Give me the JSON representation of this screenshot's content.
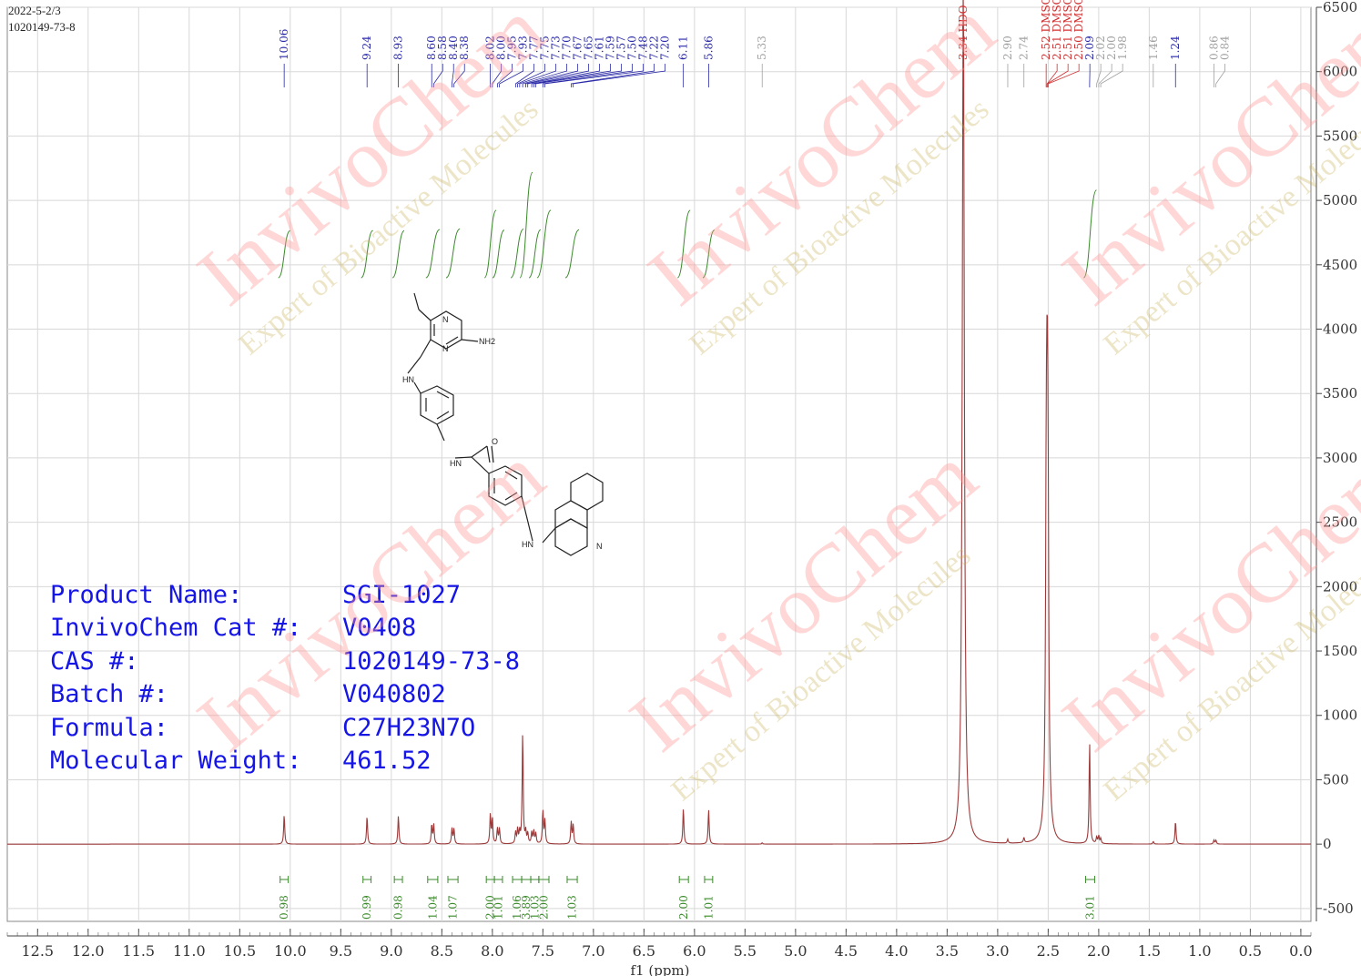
{
  "header": {
    "date": "2022-5-2/3",
    "cas_top": "1020149-73-8"
  },
  "product_info": {
    "labels": [
      "Product Name:",
      "InvivoChem Cat #:",
      "CAS #:",
      "Batch #:",
      "Formula:",
      "Molecular Weight:"
    ],
    "values": [
      "SGI-1027",
      "V0408",
      "1020149-73-8",
      "V040802",
      "C27H23N7O",
      "461.52"
    ]
  },
  "watermark": {
    "brand": "InvivoChem",
    "tagline": "Expert of Bioactive Molecules"
  },
  "structure_labels": {
    "n1": "N",
    "n2": "N",
    "nh2": "NH2",
    "hn1": "HN",
    "hn2": "HN",
    "hn3": "HN",
    "o": "O",
    "n3": "N"
  },
  "chart_data": {
    "type": "line",
    "xlabel": "f1 (ppm)",
    "xlim": [
      12.8,
      -0.1
    ],
    "ylim": [
      -600,
      6500
    ],
    "x_ticks": [
      "12.5",
      "12.0",
      "11.5",
      "11.0",
      "10.5",
      "10.0",
      "9.5",
      "9.0",
      "8.5",
      "8.0",
      "7.5",
      "7.0",
      "6.5",
      "6.0",
      "5.5",
      "5.0",
      "4.5",
      "4.0",
      "3.5",
      "3.0",
      "2.5",
      "2.0",
      "1.5",
      "1.0",
      "0.5",
      "0.0"
    ],
    "y_ticks": [
      "6500",
      "6000",
      "5500",
      "5000",
      "4500",
      "4000",
      "3500",
      "3000",
      "2500",
      "2000",
      "1500",
      "1000",
      "500",
      "0",
      "-500"
    ],
    "peaks": [
      {
        "ppm": 10.06,
        "height": 230
      },
      {
        "ppm": 9.24,
        "height": 220
      },
      {
        "ppm": 8.93,
        "height": 220
      },
      {
        "ppm": 8.6,
        "height": 150
      },
      {
        "ppm": 8.58,
        "height": 150
      },
      {
        "ppm": 8.4,
        "height": 120
      },
      {
        "ppm": 8.38,
        "height": 120
      },
      {
        "ppm": 8.02,
        "height": 230
      },
      {
        "ppm": 8.0,
        "height": 200
      },
      {
        "ppm": 7.95,
        "height": 120
      },
      {
        "ppm": 7.93,
        "height": 120
      },
      {
        "ppm": 7.77,
        "height": 90
      },
      {
        "ppm": 7.75,
        "height": 110
      },
      {
        "ppm": 7.73,
        "height": 90
      },
      {
        "ppm": 7.7,
        "height": 870
      },
      {
        "ppm": 7.67,
        "height": 90
      },
      {
        "ppm": 7.65,
        "height": 80
      },
      {
        "ppm": 7.61,
        "height": 90
      },
      {
        "ppm": 7.59,
        "height": 100
      },
      {
        "ppm": 7.57,
        "height": 80
      },
      {
        "ppm": 7.5,
        "height": 260
      },
      {
        "ppm": 7.48,
        "height": 180
      },
      {
        "ppm": 7.22,
        "height": 170
      },
      {
        "ppm": 7.2,
        "height": 150
      },
      {
        "ppm": 6.11,
        "height": 280
      },
      {
        "ppm": 5.86,
        "height": 270
      },
      {
        "ppm": 5.33,
        "height": 10
      },
      {
        "ppm": 3.34,
        "height": 6700
      },
      {
        "ppm": 2.9,
        "height": 30
      },
      {
        "ppm": 2.74,
        "height": 40
      },
      {
        "ppm": 2.52,
        "height": 1200
      },
      {
        "ppm": 2.51,
        "height": 3600
      },
      {
        "ppm": 2.5,
        "height": 1000
      },
      {
        "ppm": 2.09,
        "height": 790
      },
      {
        "ppm": 2.02,
        "height": 50
      },
      {
        "ppm": 2.0,
        "height": 60
      },
      {
        "ppm": 1.98,
        "height": 40
      },
      {
        "ppm": 1.46,
        "height": 20
      },
      {
        "ppm": 1.24,
        "height": 180
      },
      {
        "ppm": 0.86,
        "height": 30
      },
      {
        "ppm": 0.84,
        "height": 30
      }
    ],
    "peak_labels": [
      {
        "text": "10.06",
        "ppm": 10.06,
        "color": "#2a2aa8"
      },
      {
        "text": "9.24",
        "ppm": 9.24,
        "color": "#2a2aa8"
      },
      {
        "text": "8.93",
        "ppm": 8.93,
        "color": "#2a2aa8"
      },
      {
        "text": "8.60",
        "ppm": 8.6,
        "color": "#2a2aa8"
      },
      {
        "text": "8.58",
        "ppm": 8.58,
        "color": "#2a2aa8"
      },
      {
        "text": "8.40",
        "ppm": 8.4,
        "color": "#2a2aa8"
      },
      {
        "text": "8.38",
        "ppm": 8.38,
        "color": "#2a2aa8"
      },
      {
        "text": "8.02",
        "ppm": 8.02,
        "color": "#2a2aa8"
      },
      {
        "text": "8.00",
        "ppm": 8.0,
        "color": "#2a2aa8"
      },
      {
        "text": "7.95",
        "ppm": 7.95,
        "color": "#2a2aa8"
      },
      {
        "text": "7.93",
        "ppm": 7.93,
        "color": "#2a2aa8"
      },
      {
        "text": "7.77",
        "ppm": 7.77,
        "color": "#2a2aa8"
      },
      {
        "text": "7.75",
        "ppm": 7.75,
        "color": "#2a2aa8"
      },
      {
        "text": "7.73",
        "ppm": 7.73,
        "color": "#2a2aa8"
      },
      {
        "text": "7.70",
        "ppm": 7.7,
        "color": "#2a2aa8"
      },
      {
        "text": "7.67",
        "ppm": 7.67,
        "color": "#2a2aa8"
      },
      {
        "text": "7.65",
        "ppm": 7.65,
        "color": "#2a2aa8"
      },
      {
        "text": "7.61",
        "ppm": 7.61,
        "color": "#2a2aa8"
      },
      {
        "text": "7.59",
        "ppm": 7.59,
        "color": "#2a2aa8"
      },
      {
        "text": "7.57",
        "ppm": 7.57,
        "color": "#2a2aa8"
      },
      {
        "text": "7.50",
        "ppm": 7.5,
        "color": "#2a2aa8"
      },
      {
        "text": "7.48",
        "ppm": 7.48,
        "color": "#2a2aa8"
      },
      {
        "text": "7.22",
        "ppm": 7.22,
        "color": "#2a2aa8"
      },
      {
        "text": "7.20",
        "ppm": 7.2,
        "color": "#2a2aa8"
      },
      {
        "text": "6.11",
        "ppm": 6.11,
        "color": "#2a2aa8"
      },
      {
        "text": "5.86",
        "ppm": 5.86,
        "color": "#2a2aa8"
      },
      {
        "text": "5.33",
        "ppm": 5.33,
        "color": "#a0a0a0"
      },
      {
        "text": "3.34 HDO",
        "ppm": 3.34,
        "color": "#d03030"
      },
      {
        "text": "2.90",
        "ppm": 2.9,
        "color": "#a0a0a0"
      },
      {
        "text": "2.74",
        "ppm": 2.74,
        "color": "#a0a0a0"
      },
      {
        "text": "2.52 DMSO",
        "ppm": 2.52,
        "color": "#d03030"
      },
      {
        "text": "2.51 DMSO",
        "ppm": 2.51,
        "color": "#d03030"
      },
      {
        "text": "2.51 DMSO",
        "ppm": 2.51,
        "color": "#d03030"
      },
      {
        "text": "2.50 DMSO",
        "ppm": 2.5,
        "color": "#d03030"
      },
      {
        "text": "2.09",
        "ppm": 2.09,
        "color": "#2a2aa8"
      },
      {
        "text": "2.02",
        "ppm": 2.02,
        "color": "#a0a0a0"
      },
      {
        "text": "2.00",
        "ppm": 2.0,
        "color": "#a0a0a0"
      },
      {
        "text": "1.98",
        "ppm": 1.98,
        "color": "#a0a0a0"
      },
      {
        "text": "1.46",
        "ppm": 1.46,
        "color": "#a0a0a0"
      },
      {
        "text": "1.24",
        "ppm": 1.24,
        "color": "#2a2aa8"
      },
      {
        "text": "0.86",
        "ppm": 0.86,
        "color": "#a0a0a0"
      },
      {
        "text": "0.84",
        "ppm": 0.84,
        "color": "#a0a0a0"
      }
    ],
    "integrals": [
      {
        "value": "0.98",
        "from": 10.1,
        "to": 10.02
      },
      {
        "value": "0.99",
        "from": 9.28,
        "to": 9.2
      },
      {
        "value": "0.98",
        "from": 8.97,
        "to": 8.89
      },
      {
        "value": "1.04",
        "from": 8.64,
        "to": 8.54
      },
      {
        "value": "1.07",
        "from": 8.44,
        "to": 8.34
      },
      {
        "value": "2.00",
        "from": 8.06,
        "to": 7.98
      },
      {
        "value": "1.01",
        "from": 7.98,
        "to": 7.9
      },
      {
        "value": "1.06",
        "from": 7.8,
        "to": 7.71
      },
      {
        "value": "3.89",
        "from": 7.71,
        "to": 7.62
      },
      {
        "value": "1.03",
        "from": 7.62,
        "to": 7.54
      },
      {
        "value": "2.00",
        "from": 7.54,
        "to": 7.44
      },
      {
        "value": "1.03",
        "from": 7.26,
        "to": 7.16
      },
      {
        "value": "2.00",
        "from": 6.15,
        "to": 6.06
      },
      {
        "value": "1.01",
        "from": 5.9,
        "to": 5.82
      },
      {
        "value": "3.01",
        "from": 2.13,
        "to": 2.04
      }
    ],
    "colors": {
      "spectrum": "#9c3a3a",
      "integral": "#3a8a2a",
      "integral_label": "#3a8a2a",
      "grid": "#d8d8d8"
    }
  }
}
